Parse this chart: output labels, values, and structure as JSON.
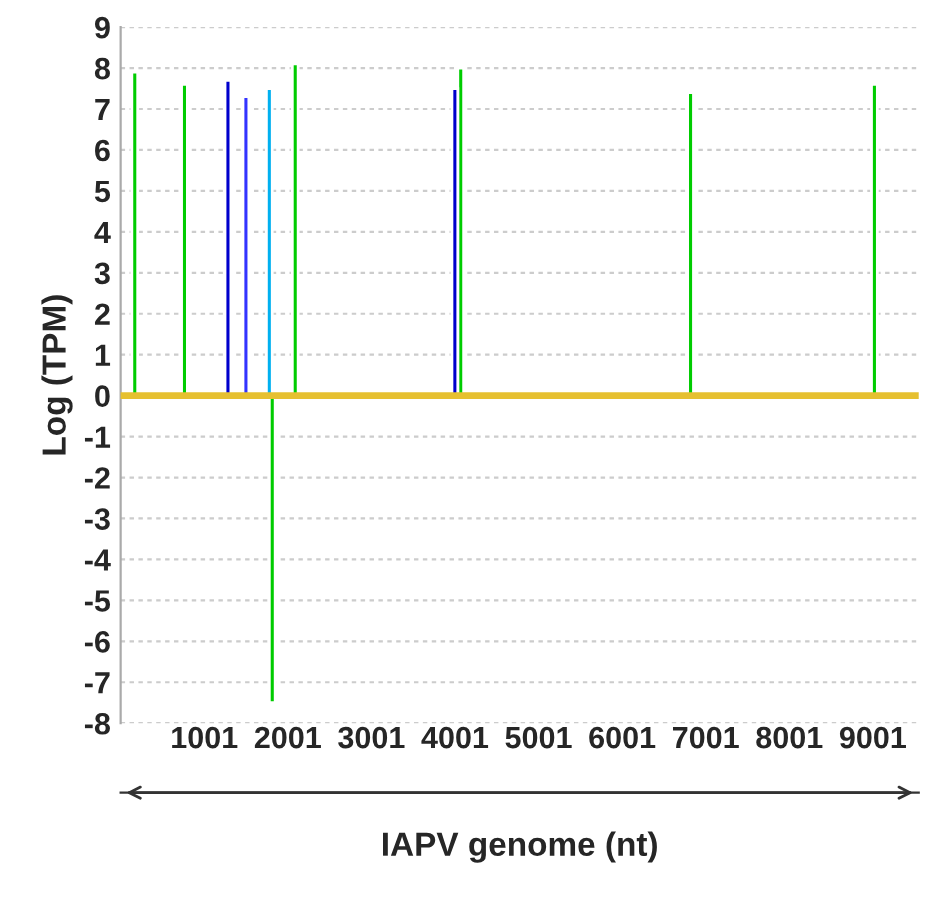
{
  "chart_data": {
    "type": "bar",
    "xlabel": "IAPV genome (nt)",
    "ylabel": "Log (TPM)",
    "xlim": [
      1,
      9550
    ],
    "xticks": [
      1001,
      2001,
      3001,
      4001,
      5001,
      6001,
      7001,
      8001,
      9001
    ],
    "ylim": [
      -8,
      9
    ],
    "yticks": [
      -8,
      -7,
      -6,
      -5,
      -4,
      -3,
      -2,
      -1,
      0,
      1,
      2,
      3,
      4,
      5,
      6,
      7,
      8,
      9
    ],
    "grid": "y",
    "series": [
      {
        "color": "#00cc00",
        "x": [
          170,
          765,
          1815,
          2090,
          4070,
          6820,
          9020
        ],
        "values": [
          7.9,
          7.6,
          -7.5,
          8.1,
          8.0,
          7.4,
          7.6
        ]
      },
      {
        "color": "#0000cc",
        "x": [
          1285,
          4000
        ],
        "values": [
          7.7,
          7.5
        ]
      },
      {
        "color": "#3333ff",
        "x": [
          1500
        ],
        "values": [
          7.3
        ]
      },
      {
        "color": "#00b0f0",
        "x": [
          1780
        ],
        "values": [
          7.5
        ]
      },
      {
        "type": "line",
        "color": "#e6c030",
        "x": [
          1,
          9550
        ],
        "values": [
          0,
          0
        ]
      }
    ]
  }
}
